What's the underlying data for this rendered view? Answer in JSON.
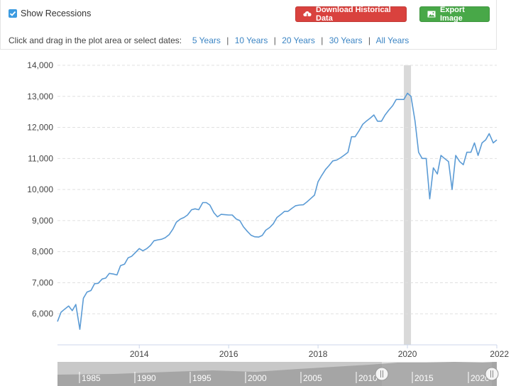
{
  "toolbar": {
    "show_recessions_label": "Show Recessions",
    "download_label": "Download Historical Data",
    "export_label": "Export Image",
    "date_prompt": "Click and drag in the plot area or select dates:",
    "ranges": [
      "5 Years",
      "10 Years",
      "20 Years",
      "30 Years",
      "All Years"
    ]
  },
  "colors": {
    "line": "#5b9bd5",
    "recession": "#d9d9d9",
    "download": "#d9423e",
    "export": "#48a848",
    "link": "#3c85c4"
  },
  "navigator": {
    "year_labels": [
      "1985",
      "1990",
      "1995",
      "2000",
      "2005",
      "2010",
      "2015",
      "2020"
    ]
  },
  "chart_data": {
    "type": "line",
    "title": "",
    "xlabel": "",
    "ylabel": "",
    "grid": true,
    "ylim": [
      5000,
      14000
    ],
    "xlim": [
      2012.17,
      2022.0
    ],
    "y_ticks": [
      6000,
      7000,
      8000,
      9000,
      10000,
      11000,
      12000,
      13000,
      14000
    ],
    "y_tick_labels": [
      "6,000",
      "7,000",
      "8,000",
      "9,000",
      "10,000",
      "11,000",
      "12,000",
      "13,000",
      "14,000"
    ],
    "x_ticks": [
      2014,
      2016,
      2018,
      2020,
      2022
    ],
    "x_tick_labels": [
      "2014",
      "2016",
      "2018",
      "2020",
      "2022"
    ],
    "recession": [
      2019.92,
      2020.08
    ],
    "series": [
      {
        "x": [
          2012.17,
          2012.25,
          2012.33,
          2012.42,
          2012.5,
          2012.58,
          2012.67,
          2012.75,
          2012.83,
          2012.92,
          2013.0,
          2013.08,
          2013.17,
          2013.25,
          2013.33,
          2013.42,
          2013.5,
          2013.58,
          2013.67,
          2013.75,
          2013.83,
          2013.92,
          2014.0,
          2014.08,
          2014.17,
          2014.25,
          2014.33,
          2014.42,
          2014.5,
          2014.58,
          2014.67,
          2014.75,
          2014.83,
          2014.92,
          2015.0,
          2015.08,
          2015.17,
          2015.25,
          2015.33,
          2015.42,
          2015.5,
          2015.58,
          2015.67,
          2015.75,
          2015.83,
          2015.92,
          2016.0,
          2016.08,
          2016.17,
          2016.25,
          2016.33,
          2016.42,
          2016.5,
          2016.58,
          2016.67,
          2016.75,
          2016.83,
          2016.92,
          2017.0,
          2017.08,
          2017.17,
          2017.25,
          2017.33,
          2017.42,
          2017.5,
          2017.58,
          2017.67,
          2017.75,
          2017.83,
          2017.92,
          2018.0,
          2018.08,
          2018.17,
          2018.25,
          2018.33,
          2018.42,
          2018.5,
          2018.58,
          2018.67,
          2018.75,
          2018.83,
          2018.92,
          2019.0,
          2019.08,
          2019.17,
          2019.25,
          2019.33,
          2019.42,
          2019.5,
          2019.58,
          2019.67,
          2019.75,
          2019.83,
          2019.92,
          2020.0,
          2020.08,
          2020.17,
          2020.25,
          2020.33,
          2020.42,
          2020.5,
          2020.58,
          2020.67,
          2020.75,
          2020.83,
          2020.92,
          2021.0,
          2021.08,
          2021.17,
          2021.25,
          2021.33,
          2021.42,
          2021.5,
          2021.58,
          2021.67,
          2021.75,
          2021.83,
          2021.92,
          2022.0
        ],
        "values": [
          5750,
          6050,
          6150,
          6250,
          6100,
          6300,
          5500,
          6500,
          6700,
          6750,
          6970,
          6980,
          7120,
          7150,
          7300,
          7280,
          7250,
          7550,
          7600,
          7800,
          7850,
          7980,
          8100,
          8030,
          8100,
          8200,
          8350,
          8380,
          8400,
          8450,
          8550,
          8720,
          8950,
          9050,
          9100,
          9180,
          9350,
          9380,
          9350,
          9580,
          9580,
          9500,
          9250,
          9120,
          9200,
          9190,
          9180,
          9180,
          9050,
          9000,
          8800,
          8650,
          8530,
          8480,
          8470,
          8520,
          8690,
          8780,
          8900,
          9100,
          9200,
          9300,
          9300,
          9400,
          9480,
          9500,
          9510,
          9600,
          9700,
          9820,
          10250,
          10450,
          10650,
          10780,
          10920,
          10950,
          11020,
          11100,
          11200,
          11700,
          11700,
          11900,
          12100,
          12200,
          12300,
          12400,
          12200,
          12200,
          12400,
          12550,
          12700,
          12900,
          12900,
          12900,
          13100,
          13000,
          12200,
          11200,
          11000,
          11000,
          9700,
          10700,
          10500,
          11100,
          11000,
          10900,
          10000,
          11100,
          10900,
          10800,
          11200,
          11200,
          11500,
          11100,
          11500,
          11600,
          11800,
          11500,
          11600
        ]
      }
    ]
  }
}
